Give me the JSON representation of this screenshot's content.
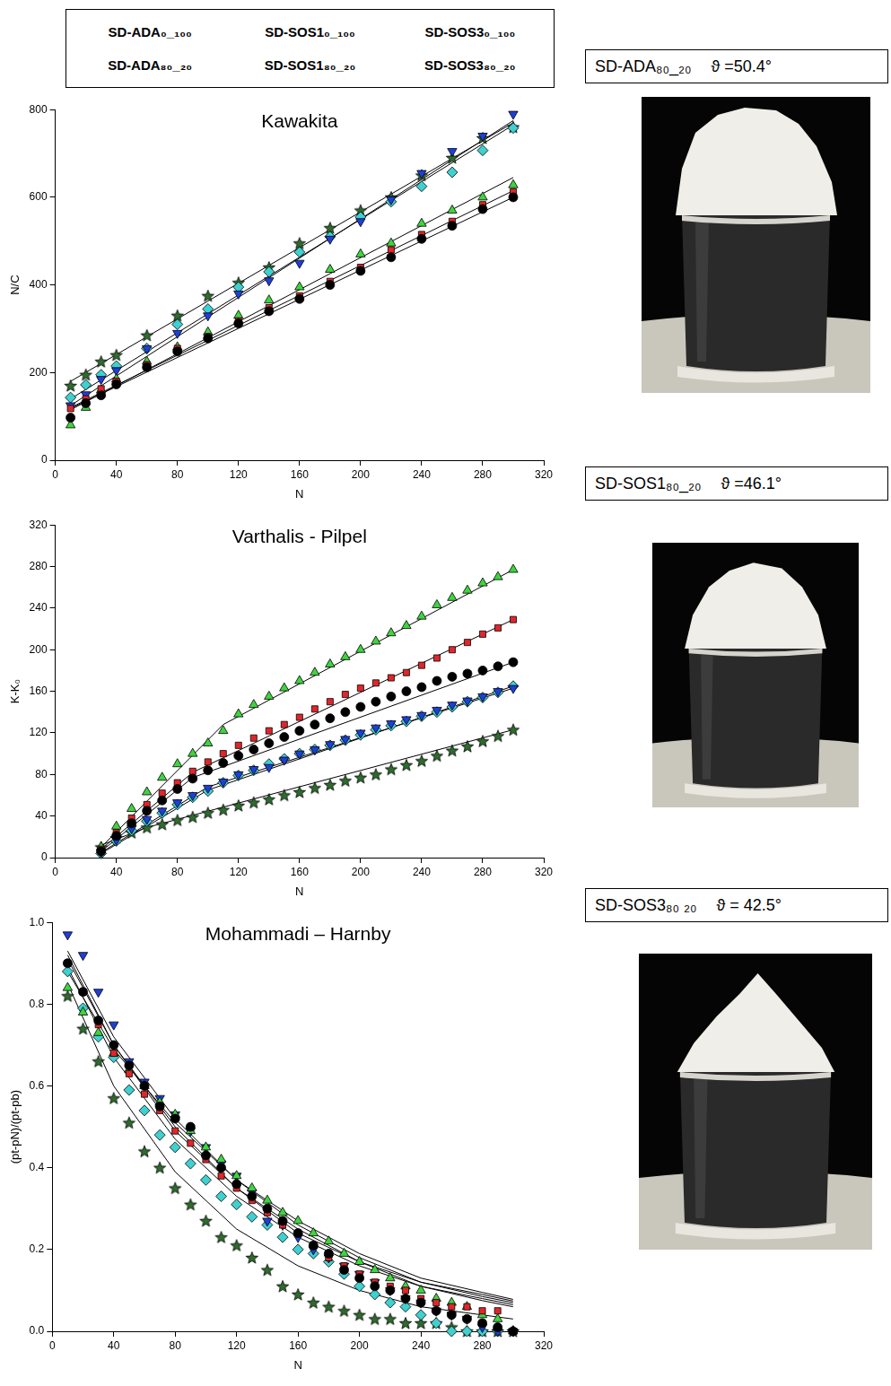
{
  "chart_data": [
    {
      "type": "scatter",
      "title": "Kawakita",
      "xlabel": "N",
      "ylabel": "N/C",
      "legend": "top",
      "grid": false,
      "x": [
        10,
        20,
        30,
        40,
        60,
        80,
        100,
        120,
        140,
        160,
        180,
        200,
        220,
        240,
        260,
        280,
        300
      ],
      "xlim": [
        0,
        320
      ],
      "xticks": [
        0,
        40,
        80,
        120,
        160,
        200,
        240,
        280,
        320
      ],
      "ylim": [
        0,
        800
      ],
      "yticks": [
        0,
        200,
        400,
        600,
        800
      ],
      "series": [
        {
          "name": "SD-ADA₀_₁₀₀",
          "color": "#000000",
          "marker": "circle",
          "values": [
            97,
            130,
            148,
            173,
            212,
            248,
            278,
            312,
            340,
            368,
            400,
            432,
            463,
            505,
            535,
            573,
            600
          ],
          "fit": {
            "x": [
              10,
              300
            ],
            "values": [
              118,
              600
            ]
          }
        },
        {
          "name": "SD-SOS1₀_₁₀₀",
          "color": "#e0262b",
          "marker": "square",
          "values": [
            118,
            140,
            163,
            180,
            218,
            255,
            282,
            318,
            348,
            375,
            408,
            440,
            480,
            515,
            545,
            583,
            612
          ],
          "fit": {
            "x": [
              10,
              300
            ],
            "values": [
              120,
              615
            ]
          }
        },
        {
          "name": "SD-SOS3₀_₁₀₀",
          "color": "#3fd43f",
          "marker": "triangle",
          "values": [
            80,
            120,
            160,
            185,
            225,
            258,
            292,
            330,
            365,
            395,
            435,
            470,
            495,
            540,
            570,
            600,
            628
          ],
          "fit": {
            "x": [
              10,
              300
            ],
            "values": [
              115,
              645
            ]
          }
        },
        {
          "name": "SD-ADA₈₀_₂₀",
          "color": "#1f3fd8",
          "marker": "triangle_down",
          "values": [
            125,
            150,
            185,
            205,
            255,
            290,
            330,
            380,
            410,
            450,
            505,
            545,
            595,
            655,
            705,
            740,
            790
          ],
          "fit": {
            "x": [
              10,
              300
            ],
            "values": [
              125,
              775
            ]
          }
        },
        {
          "name": "SD-SOS1₈₀_₂₀",
          "color": "#3fd0d0",
          "marker": "diamond",
          "values": [
            143,
            172,
            195,
            215,
            255,
            310,
            345,
            395,
            430,
            475,
            510,
            555,
            590,
            625,
            657,
            707,
            758
          ],
          "fit": {
            "x": [
              10,
              300
            ],
            "values": [
              140,
              765
            ]
          }
        },
        {
          "name": "SD-SOS3₈₀_₂₀",
          "color": "#2e6b2e",
          "marker": "star",
          "values": [
            170,
            195,
            225,
            240,
            285,
            330,
            375,
            405,
            440,
            495,
            530,
            570,
            600,
            650,
            690,
            735,
            760
          ],
          "fit": {
            "x": [
              10,
              300
            ],
            "values": [
              180,
              770
            ]
          }
        }
      ]
    },
    {
      "type": "scatter",
      "title": "Varthalis - Pilpel",
      "xlabel": "N",
      "ylabel": "K-K₀",
      "grid": false,
      "x": [
        30,
        40,
        50,
        60,
        70,
        80,
        90,
        100,
        110,
        120,
        130,
        140,
        150,
        160,
        170,
        180,
        190,
        200,
        210,
        220,
        230,
        240,
        250,
        260,
        270,
        280,
        290,
        300
      ],
      "xlim": [
        0,
        320
      ],
      "xticks": [
        0,
        40,
        80,
        120,
        160,
        200,
        240,
        280,
        320
      ],
      "ylim": [
        0,
        320
      ],
      "yticks": [
        0,
        40,
        80,
        120,
        160,
        200,
        240,
        280,
        320
      ],
      "series": [
        {
          "name": "SD-ADA₀_₁₀₀",
          "color": "#000000",
          "marker": "circle",
          "values": [
            6,
            21,
            33,
            45,
            55,
            66,
            76,
            84,
            91,
            98,
            104,
            110,
            116,
            122,
            128,
            134,
            140,
            145,
            150,
            155,
            160,
            164,
            170,
            174,
            177,
            180,
            184,
            188
          ],
          "fit": {
            "x": [
              30,
              90,
              300
            ],
            "values": [
              6,
              77,
              188
            ]
          }
        },
        {
          "name": "SD-SOS1₀_₁₀₀",
          "color": "#e0262b",
          "marker": "square",
          "values": [
            8,
            24,
            38,
            51,
            62,
            72,
            83,
            92,
            100,
            108,
            115,
            122,
            128,
            135,
            143,
            150,
            157,
            163,
            168,
            173,
            178,
            185,
            192,
            200,
            207,
            215,
            221,
            229
          ],
          "fit": {
            "x": [
              30,
              90,
              300
            ],
            "values": [
              8,
              82,
              229
            ]
          }
        },
        {
          "name": "SD-SOS3₀_₁₀₀",
          "color": "#3fd43f",
          "marker": "triangle",
          "values": [
            10,
            30,
            47,
            63,
            77,
            90,
            100,
            110,
            122,
            138,
            147,
            155,
            163,
            170,
            178,
            186,
            193,
            200,
            208,
            216,
            223,
            232,
            243,
            250,
            257,
            264,
            270,
            277
          ],
          "fit": {
            "x": [
              30,
              110,
              300
            ],
            "values": [
              10,
              128,
              277
            ]
          }
        },
        {
          "name": "SD-ADA₈₀_₂₀",
          "color": "#1f3fd8",
          "marker": "triangle_down",
          "values": [
            5,
            17,
            28,
            37,
            45,
            53,
            60,
            67,
            73,
            80,
            85,
            87,
            94,
            100,
            104,
            109,
            114,
            120,
            125,
            129,
            133,
            137,
            142,
            147,
            151,
            155,
            160,
            163
          ],
          "fit": {
            "x": [
              30,
              100,
              300
            ],
            "values": [
              5,
              68,
              163
            ]
          }
        },
        {
          "name": "SD-SOS1₈₀_₂₀",
          "color": "#3fd0d0",
          "marker": "diamond",
          "values": [
            4,
            16,
            26,
            35,
            43,
            51,
            58,
            64,
            72,
            79,
            84,
            90,
            95,
            100,
            104,
            108,
            113,
            118,
            123,
            127,
            131,
            136,
            140,
            145,
            150,
            154,
            159,
            165
          ],
          "fit": {
            "x": [
              30,
              100,
              300
            ],
            "values": [
              4,
              65,
              165
            ]
          }
        },
        {
          "name": "SD-SOS3₈₀_₂₀",
          "color": "#2e6b2e",
          "marker": "star",
          "values": [
            10,
            19,
            24,
            29,
            32,
            36,
            39,
            43,
            46,
            50,
            53,
            56,
            60,
            63,
            67,
            70,
            74,
            77,
            80,
            85,
            89,
            93,
            98,
            103,
            107,
            112,
            117,
            123
          ],
          "fit": {
            "x": [
              30,
              60,
              300
            ],
            "values": [
              12,
              29,
              123
            ]
          }
        }
      ]
    },
    {
      "type": "scatter",
      "title": "Mohammadi – Harnby",
      "xlabel": "N",
      "ylabel": "(pt-pN)/(pt-pb)",
      "grid": false,
      "x": [
        10,
        20,
        30,
        40,
        50,
        60,
        70,
        80,
        90,
        100,
        110,
        120,
        130,
        140,
        150,
        160,
        170,
        180,
        190,
        200,
        210,
        220,
        230,
        240,
        250,
        260,
        270,
        280,
        290,
        300
      ],
      "xlim": [
        0,
        320
      ],
      "xticks": [
        0,
        40,
        80,
        120,
        160,
        200,
        240,
        280,
        320
      ],
      "ylim": [
        0,
        1
      ],
      "yticks": [
        {
          "value": 0,
          "label": "0.0"
        },
        0.2,
        0.4,
        0.6,
        0.8,
        {
          "value": 1,
          "label": "1.0"
        }
      ],
      "series": [
        {
          "name": "SD-ADA₀_₁₀₀",
          "color": "#000000",
          "marker": "circle",
          "values": [
            0.9,
            0.83,
            0.76,
            0.7,
            0.65,
            0.6,
            0.55,
            0.52,
            0.5,
            0.43,
            0.4,
            0.36,
            0.33,
            0.3,
            0.27,
            0.24,
            0.21,
            0.19,
            0.15,
            0.13,
            0.11,
            0.1,
            0.08,
            0.07,
            0.05,
            0.04,
            0.03,
            0.02,
            0.01,
            0.0
          ],
          "fit": {
            "x": [
              10,
              40,
              80,
              120,
              160,
              200,
              240,
              280,
              300
            ],
            "values": [
              0.92,
              0.7,
              0.5,
              0.35,
              0.25,
              0.17,
              0.12,
              0.085,
              0.07
            ]
          }
        },
        {
          "name": "SD-SOS1₀_₁₀₀",
          "color": "#e0262b",
          "marker": "square",
          "values": [
            0.9,
            0.83,
            0.75,
            0.68,
            0.63,
            0.58,
            0.54,
            0.49,
            0.46,
            0.42,
            0.38,
            0.35,
            0.32,
            0.29,
            0.26,
            0.24,
            0.21,
            0.18,
            0.16,
            0.14,
            0.12,
            0.11,
            0.1,
            0.08,
            0.07,
            0.06,
            0.06,
            0.05,
            0.05,
            0.0
          ],
          "fit": {
            "x": [
              10,
              40,
              80,
              120,
              160,
              200,
              240,
              280,
              300
            ],
            "values": [
              0.91,
              0.7,
              0.49,
              0.35,
              0.24,
              0.17,
              0.11,
              0.08,
              0.065
            ]
          }
        },
        {
          "name": "SD-SOS3₀_₁₀₀",
          "color": "#3fd43f",
          "marker": "triangle",
          "values": [
            0.84,
            0.78,
            0.73,
            0.68,
            0.64,
            0.6,
            0.56,
            0.53,
            0.49,
            0.45,
            0.42,
            0.38,
            0.35,
            0.32,
            0.29,
            0.27,
            0.24,
            0.22,
            0.19,
            0.17,
            0.15,
            0.13,
            0.11,
            0.1,
            0.08,
            0.07,
            0.06,
            0.04,
            0.03,
            0.0
          ],
          "fit": {
            "x": [
              10,
              40,
              80,
              120,
              160,
              200,
              240,
              280,
              300
            ],
            "values": [
              0.88,
              0.69,
              0.51,
              0.37,
              0.27,
              0.19,
              0.13,
              0.095,
              0.078
            ]
          }
        },
        {
          "name": "SD-ADA₈₀_₂₀",
          "color": "#1f3fd8",
          "marker": "triangle_down",
          "values": [
            0.97,
            0.92,
            0.83,
            0.75,
            0.66,
            0.61,
            0.57,
            0.53,
            0.49,
            0.45,
            0.41,
            0.38,
            0.34,
            0.27,
            0.26,
            0.23,
            0.2,
            0.18,
            0.16,
            0.14,
            0.12,
            0.1,
            0.08,
            0.07,
            0.05,
            0.04,
            0.03,
            0.01,
            0.0,
            0.0
          ],
          "fit": {
            "x": [
              10,
              40,
              80,
              120,
              160,
              200,
              240,
              280,
              300
            ],
            "values": [
              0.93,
              0.72,
              0.52,
              0.37,
              0.26,
              0.18,
              0.12,
              0.09,
              0.074
            ]
          }
        },
        {
          "name": "SD-SOS1₈₀_₂₀",
          "color": "#3fd0d0",
          "marker": "diamond",
          "values": [
            0.88,
            0.79,
            0.72,
            0.67,
            0.59,
            0.54,
            0.48,
            0.45,
            0.41,
            0.37,
            0.33,
            0.31,
            0.28,
            0.26,
            0.23,
            0.2,
            0.19,
            0.17,
            0.14,
            0.11,
            0.09,
            0.07,
            0.06,
            0.04,
            0.02,
            0.0,
            0.0,
            0.0,
            0.0,
            0.0
          ],
          "fit": {
            "x": [
              10,
              40,
              80,
              120,
              160,
              200,
              240,
              280,
              300
            ],
            "values": [
              0.89,
              0.67,
              0.47,
              0.33,
              0.23,
              0.16,
              0.11,
              0.075,
              0.06
            ]
          }
        },
        {
          "name": "SD-SOS3₈₀_₂₀",
          "color": "#2e6b2e",
          "marker": "star",
          "values": [
            0.82,
            0.74,
            0.66,
            0.57,
            0.51,
            0.44,
            0.4,
            0.35,
            0.31,
            0.27,
            0.23,
            0.21,
            0.18,
            0.15,
            0.11,
            0.09,
            0.07,
            0.06,
            0.05,
            0.04,
            0.03,
            0.03,
            0.02,
            0.02,
            0.02,
            0.01,
            0.0,
            0.0,
            0.0,
            0.0
          ],
          "fit": {
            "x": [
              10,
              40,
              80,
              120,
              160,
              200,
              240,
              280,
              300
            ],
            "values": [
              0.85,
              0.6,
              0.39,
              0.25,
              0.16,
              0.1,
              0.06,
              0.04,
              0.03
            ]
          }
        }
      ]
    }
  ],
  "photos": [
    {
      "caption": "SD-ADA₈₀_₂₀",
      "angle": "ϑ =50.4°"
    },
    {
      "caption": "SD-SOS1₈₀_₂₀",
      "angle": "ϑ =46.1°"
    },
    {
      "caption": "SD-SOS3₈₀ ₂₀",
      "angle": "ϑ = 42.5°"
    }
  ]
}
